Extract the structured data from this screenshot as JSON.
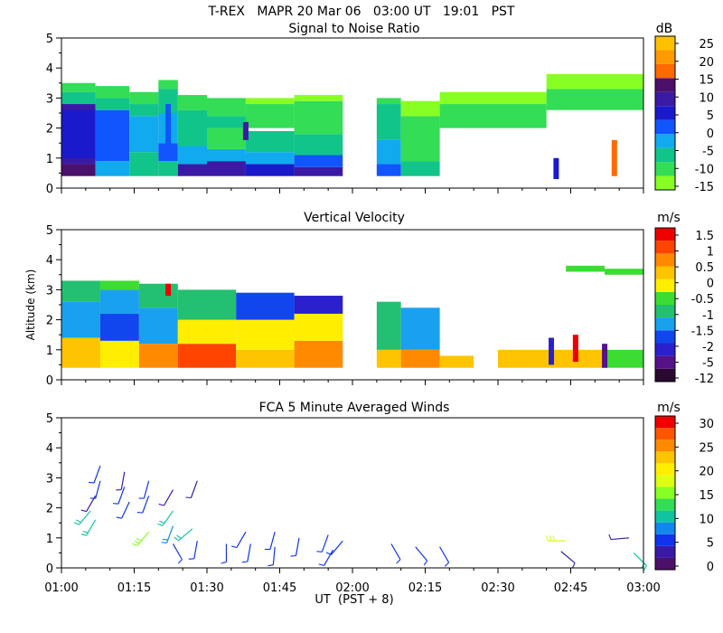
{
  "header": {
    "title_line": "T-REX   MAPR 20 Mar 06   03:00 UT   19:01   PST"
  },
  "y_axis_label": "Altitude (km)",
  "x_axis_label": "UT  (PST + 8)",
  "x_ticks": [
    "01:00",
    "01:15",
    "01:30",
    "01:45",
    "02:00",
    "02:15",
    "02:30",
    "02:45",
    "03:00"
  ],
  "y_ticks": [
    "0",
    "1",
    "2",
    "3",
    "4",
    "5"
  ],
  "colors": {
    "palette_snr": [
      "#88ff22",
      "#33dd55",
      "#11c48a",
      "#11aaee",
      "#1155ff",
      "#1a1acc",
      "#3a1aa5",
      "#4b116a",
      "#ff6a00",
      "#ff9a00",
      "#ffc000"
    ],
    "palette_vv": [
      "#2a0830",
      "#551188",
      "#2a20cc",
      "#1146ee",
      "#19a0ee",
      "#22c070",
      "#3cdc33",
      "#ffee00",
      "#ffc400",
      "#ff8a00",
      "#ff4400",
      "#ee0000"
    ],
    "palette_wind": [
      "#4b116a",
      "#3a1aa5",
      "#1133ee",
      "#1188ee",
      "#11c4a0",
      "#33dd55",
      "#88ff22",
      "#ddff11",
      "#ffee00",
      "#ffc400",
      "#ff8a00",
      "#ff5500",
      "#ee0000"
    ]
  },
  "chart_data": [
    {
      "type": "heatmap",
      "title": "Signal to Noise Ratio",
      "xlabel": "UT  (PST + 8)",
      "ylabel": "Altitude (km)",
      "xlim": [
        "01:00",
        "03:00"
      ],
      "ylim": [
        0,
        5
      ],
      "colorbar_unit": "dB",
      "colorbar_ticks": [
        "25",
        "20",
        "15",
        "10",
        "5",
        "0",
        "-5",
        "-10",
        "-15"
      ],
      "data_gap": [
        "02:00",
        "02:05"
      ],
      "profiles": [
        {
          "t": [
            0,
            7
          ],
          "layers": [
            [
              0.4,
              0.8,
              7
            ],
            [
              0.8,
              2.8,
              6
            ],
            [
              1.0,
              2.6,
              5
            ],
            [
              2.8,
              3.2,
              2
            ],
            [
              3.2,
              3.5,
              1
            ]
          ]
        },
        {
          "t": [
            7,
            14
          ],
          "layers": [
            [
              0.4,
              0.9,
              3
            ],
            [
              0.9,
              2.6,
              4
            ],
            [
              2.6,
              3.0,
              2
            ],
            [
              3.0,
              3.4,
              1
            ]
          ]
        },
        {
          "t": [
            14,
            20
          ],
          "layers": [
            [
              0.4,
              1.2,
              2
            ],
            [
              1.2,
              2.4,
              3
            ],
            [
              2.4,
              2.8,
              2
            ],
            [
              2.8,
              3.2,
              1
            ]
          ]
        },
        {
          "t": [
            20,
            24
          ],
          "layers": [
            [
              0.4,
              0.9,
              2
            ],
            [
              0.9,
              1.5,
              4
            ],
            [
              1.5,
              2.5,
              3
            ],
            [
              2.5,
              3.3,
              2
            ],
            [
              3.3,
              3.6,
              1
            ]
          ]
        },
        {
          "t": [
            24,
            30
          ],
          "layers": [
            [
              0.4,
              0.8,
              6
            ],
            [
              0.8,
              1.4,
              3
            ],
            [
              1.4,
              2.6,
              2
            ],
            [
              2.6,
              3.1,
              1
            ]
          ]
        },
        {
          "t": [
            30,
            38
          ],
          "layers": [
            [
              0.4,
              0.9,
              6
            ],
            [
              0.9,
              1.3,
              3
            ],
            [
              1.3,
              2.0,
              1
            ],
            [
              2.0,
              2.4,
              2
            ],
            [
              2.4,
              3.0,
              1
            ]
          ]
        },
        {
          "t": [
            38,
            48
          ],
          "layers": [
            [
              0.4,
              0.8,
              5
            ],
            [
              0.8,
              1.2,
              3
            ],
            [
              1.2,
              1.9,
              2
            ],
            [
              2.0,
              2.8,
              1
            ],
            [
              2.8,
              3.0,
              0
            ]
          ]
        },
        {
          "t": [
            48,
            58
          ],
          "layers": [
            [
              0.4,
              0.7,
              6
            ],
            [
              0.7,
              1.1,
              4
            ],
            [
              1.1,
              1.8,
              2
            ],
            [
              1.8,
              2.9,
              1
            ],
            [
              2.9,
              3.1,
              0
            ]
          ]
        },
        {
          "t": [
            65,
            70
          ],
          "layers": [
            [
              0.4,
              0.8,
              4
            ],
            [
              0.8,
              1.6,
              3
            ],
            [
              1.6,
              2.8,
              2
            ],
            [
              2.8,
              3.0,
              1
            ]
          ]
        },
        {
          "t": [
            70,
            78
          ],
          "layers": [
            [
              0.4,
              0.9,
              2
            ],
            [
              0.9,
              2.4,
              1
            ],
            [
              2.4,
              2.9,
              0
            ]
          ]
        },
        {
          "t": [
            78,
            100
          ],
          "layers": [
            [
              2.0,
              2.8,
              1
            ],
            [
              2.8,
              3.2,
              0
            ]
          ]
        },
        {
          "t": [
            100,
            120
          ],
          "layers": [
            [
              2.6,
              3.3,
              1
            ],
            [
              3.3,
              3.8,
              0
            ]
          ]
        }
      ],
      "streaks": [
        {
          "t": 22,
          "z0": 1.3,
          "z1": 2.8,
          "level": 4
        },
        {
          "t": 38,
          "z0": 1.6,
          "z1": 2.2,
          "level": 6
        },
        {
          "t": 102,
          "z0": 0.3,
          "z1": 1.0,
          "level": 5
        },
        {
          "t": 114,
          "z0": 0.4,
          "z1": 1.6,
          "level": 8
        }
      ]
    },
    {
      "type": "heatmap",
      "title": "Vertical Velocity",
      "xlabel": "UT  (PST + 8)",
      "ylabel": "Altitude (km)",
      "xlim": [
        "01:00",
        "03:00"
      ],
      "ylim": [
        0,
        5
      ],
      "colorbar_unit": "m/s",
      "colorbar_ticks": [
        "1.5",
        "1",
        "0.5",
        "0",
        "-0.5",
        "-1",
        "-1.5",
        "-2",
        "-5",
        "-12"
      ],
      "data_gap": [
        "02:00",
        "02:05"
      ],
      "profiles": [
        {
          "t": [
            0,
            8
          ],
          "layers": [
            [
              0.4,
              1.4,
              8
            ],
            [
              1.4,
              2.6,
              4
            ],
            [
              2.6,
              3.3,
              5
            ]
          ]
        },
        {
          "t": [
            8,
            16
          ],
          "layers": [
            [
              0.4,
              1.3,
              7
            ],
            [
              1.3,
              2.2,
              3
            ],
            [
              2.2,
              3.0,
              4
            ],
            [
              3.0,
              3.3,
              6
            ]
          ]
        },
        {
          "t": [
            16,
            24
          ],
          "layers": [
            [
              0.4,
              1.2,
              9
            ],
            [
              1.2,
              2.4,
              4
            ],
            [
              2.4,
              3.2,
              5
            ]
          ]
        },
        {
          "t": [
            24,
            36
          ],
          "layers": [
            [
              0.4,
              1.2,
              10
            ],
            [
              1.2,
              2.0,
              7
            ],
            [
              2.0,
              3.0,
              5
            ]
          ]
        },
        {
          "t": [
            36,
            48
          ],
          "layers": [
            [
              0.4,
              1.0,
              8
            ],
            [
              1.0,
              2.0,
              7
            ],
            [
              2.0,
              2.9,
              3
            ]
          ]
        },
        {
          "t": [
            48,
            58
          ],
          "layers": [
            [
              0.4,
              1.3,
              9
            ],
            [
              1.3,
              2.2,
              7
            ],
            [
              2.2,
              2.8,
              2
            ]
          ]
        },
        {
          "t": [
            65,
            70
          ],
          "layers": [
            [
              0.4,
              1.0,
              8
            ],
            [
              1.0,
              2.6,
              5
            ]
          ]
        },
        {
          "t": [
            70,
            78
          ],
          "layers": [
            [
              0.4,
              1.0,
              9
            ],
            [
              1.0,
              2.4,
              4
            ]
          ]
        },
        {
          "t": [
            78,
            85
          ],
          "layers": [
            [
              0.4,
              0.8,
              8
            ]
          ]
        },
        {
          "t": [
            90,
            112
          ],
          "layers": [
            [
              0.4,
              1.0,
              8
            ]
          ]
        },
        {
          "t": [
            104,
            112
          ],
          "layers": [
            [
              3.6,
              3.8,
              6
            ]
          ]
        },
        {
          "t": [
            112,
            120
          ],
          "layers": [
            [
              0.4,
              1.0,
              6
            ],
            [
              3.5,
              3.7,
              6
            ]
          ]
        }
      ],
      "streaks": [
        {
          "t": 22,
          "z0": 2.8,
          "z1": 3.2,
          "level": 11
        },
        {
          "t": 101,
          "z0": 0.5,
          "z1": 1.4,
          "level": 2
        },
        {
          "t": 106,
          "z0": 0.6,
          "z1": 1.5,
          "level": 11
        },
        {
          "t": 112,
          "z0": 0.4,
          "z1": 1.2,
          "level": 1
        }
      ]
    },
    {
      "type": "scatter",
      "title": "FCA 5 Minute Averaged Winds",
      "xlabel": "UT  (PST + 8)",
      "ylabel": "Altitude (km)",
      "xlim": [
        "01:00",
        "03:00"
      ],
      "ylim": [
        0,
        5
      ],
      "colorbar_unit": "m/s",
      "colorbar_ticks": [
        "30",
        "25",
        "20",
        "15",
        "10",
        "5",
        "0"
      ],
      "barbs": [
        {
          "t": 8,
          "z": 3.4,
          "dir": 200,
          "speed": 5
        },
        {
          "t": 8,
          "z": 2.9,
          "dir": 195,
          "speed": 4
        },
        {
          "t": 7,
          "z": 2.4,
          "dir": 210,
          "speed": 3
        },
        {
          "t": 6,
          "z": 1.9,
          "dir": 220,
          "speed": 9
        },
        {
          "t": 7,
          "z": 1.6,
          "dir": 210,
          "speed": 9
        },
        {
          "t": 13,
          "z": 3.2,
          "dir": 190,
          "speed": 3
        },
        {
          "t": 13,
          "z": 2.7,
          "dir": 200,
          "speed": 4
        },
        {
          "t": 14,
          "z": 2.2,
          "dir": 205,
          "speed": 6
        },
        {
          "t": 18,
          "z": 2.9,
          "dir": 195,
          "speed": 5
        },
        {
          "t": 18,
          "z": 2.4,
          "dir": 200,
          "speed": 6
        },
        {
          "t": 18,
          "z": 1.2,
          "dir": 220,
          "speed": 16
        },
        {
          "t": 23,
          "z": 2.6,
          "dir": 210,
          "speed": 3
        },
        {
          "t": 23,
          "z": 1.9,
          "dir": 215,
          "speed": 9
        },
        {
          "t": 23,
          "z": 1.4,
          "dir": 200,
          "speed": 8
        },
        {
          "t": 23,
          "z": 0.8,
          "dir": 150,
          "speed": 4
        },
        {
          "t": 28,
          "z": 2.9,
          "dir": 200,
          "speed": 3
        },
        {
          "t": 27,
          "z": 1.3,
          "dir": 230,
          "speed": 10
        },
        {
          "t": 28,
          "z": 0.9,
          "dir": 190,
          "speed": 5
        },
        {
          "t": 34,
          "z": 0.8,
          "dir": 180,
          "speed": 4
        },
        {
          "t": 38,
          "z": 1.2,
          "dir": 210,
          "speed": 6
        },
        {
          "t": 39,
          "z": 0.8,
          "dir": 190,
          "speed": 5
        },
        {
          "t": 44,
          "z": 1.2,
          "dir": 195,
          "speed": 5
        },
        {
          "t": 44,
          "z": 0.7,
          "dir": 185,
          "speed": 4
        },
        {
          "t": 49,
          "z": 1.0,
          "dir": 190,
          "speed": 4
        },
        {
          "t": 55,
          "z": 1.1,
          "dir": 200,
          "speed": 6
        },
        {
          "t": 56,
          "z": 0.6,
          "dir": 210,
          "speed": 4
        },
        {
          "t": 58,
          "z": 0.9,
          "dir": 220,
          "speed": 5
        },
        {
          "t": 68,
          "z": 0.8,
          "dir": 150,
          "speed": 4
        },
        {
          "t": 73,
          "z": 0.7,
          "dir": 140,
          "speed": 4
        },
        {
          "t": 78,
          "z": 0.7,
          "dir": 150,
          "speed": 4
        },
        {
          "t": 104,
          "z": 0.9,
          "dir": 270,
          "speed": 18
        },
        {
          "t": 103,
          "z": 0.55,
          "dir": 130,
          "speed": 2
        },
        {
          "t": 117,
          "z": 1.0,
          "dir": 265,
          "speed": 3
        },
        {
          "t": 118,
          "z": 0.5,
          "dir": 135,
          "speed": 10
        }
      ]
    }
  ]
}
